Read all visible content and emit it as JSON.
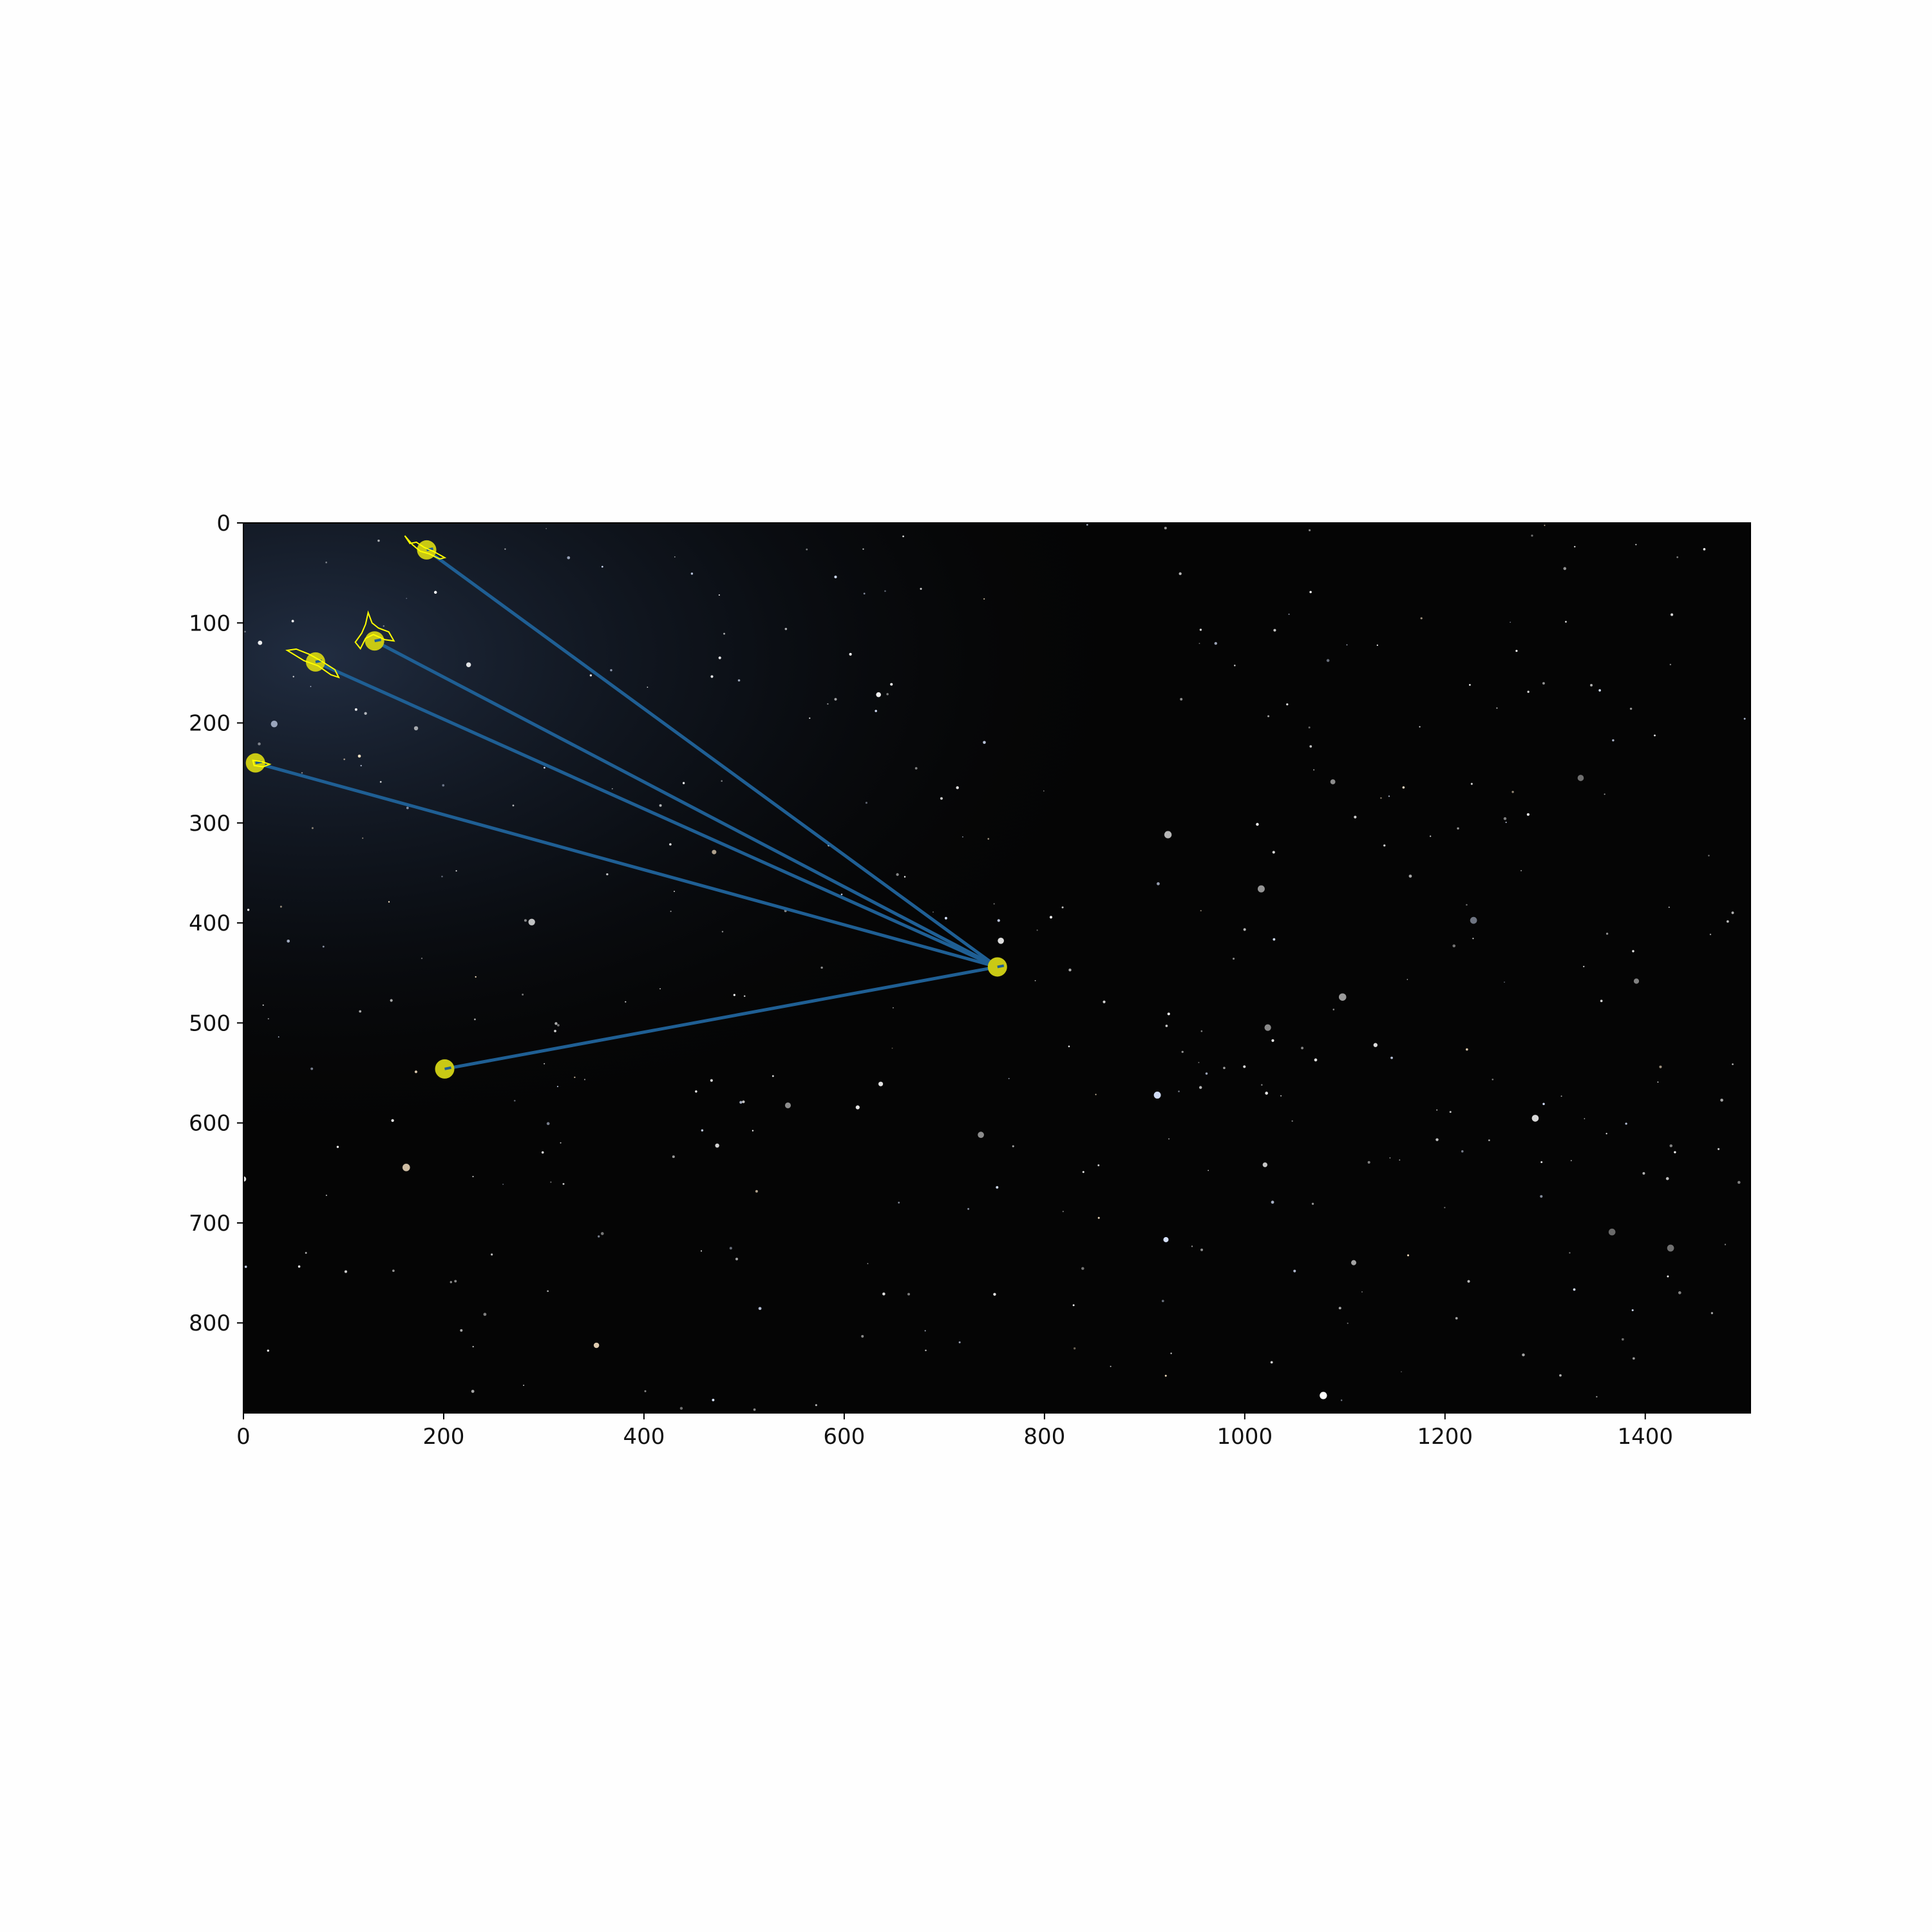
{
  "chart_data": {
    "type": "scatter",
    "title": "",
    "xlabel": "",
    "ylabel": "",
    "xlim": [
      0,
      1505
    ],
    "ylim": [
      890,
      0
    ],
    "y_inverted": true,
    "grid": false,
    "background": "star-field image (night sky)",
    "xticks": [
      0,
      200,
      400,
      600,
      800,
      1000,
      1200,
      1400
    ],
    "yticks": [
      0,
      100,
      200,
      300,
      400,
      500,
      600,
      700,
      800
    ],
    "hub": {
      "x": 753,
      "y": 444
    },
    "points": [
      {
        "x": 183,
        "y": 27
      },
      {
        "x": 131,
        "y": 118
      },
      {
        "x": 72,
        "y": 139
      },
      {
        "x": 12,
        "y": 240
      },
      {
        "x": 201,
        "y": 546
      }
    ],
    "lines": "each point connected to hub",
    "colors": {
      "line": "#1f5f94",
      "marker": "#c9c914",
      "outline": "#ffff00",
      "plot_bg": "#050505",
      "page_bg": "#fefefe"
    }
  }
}
